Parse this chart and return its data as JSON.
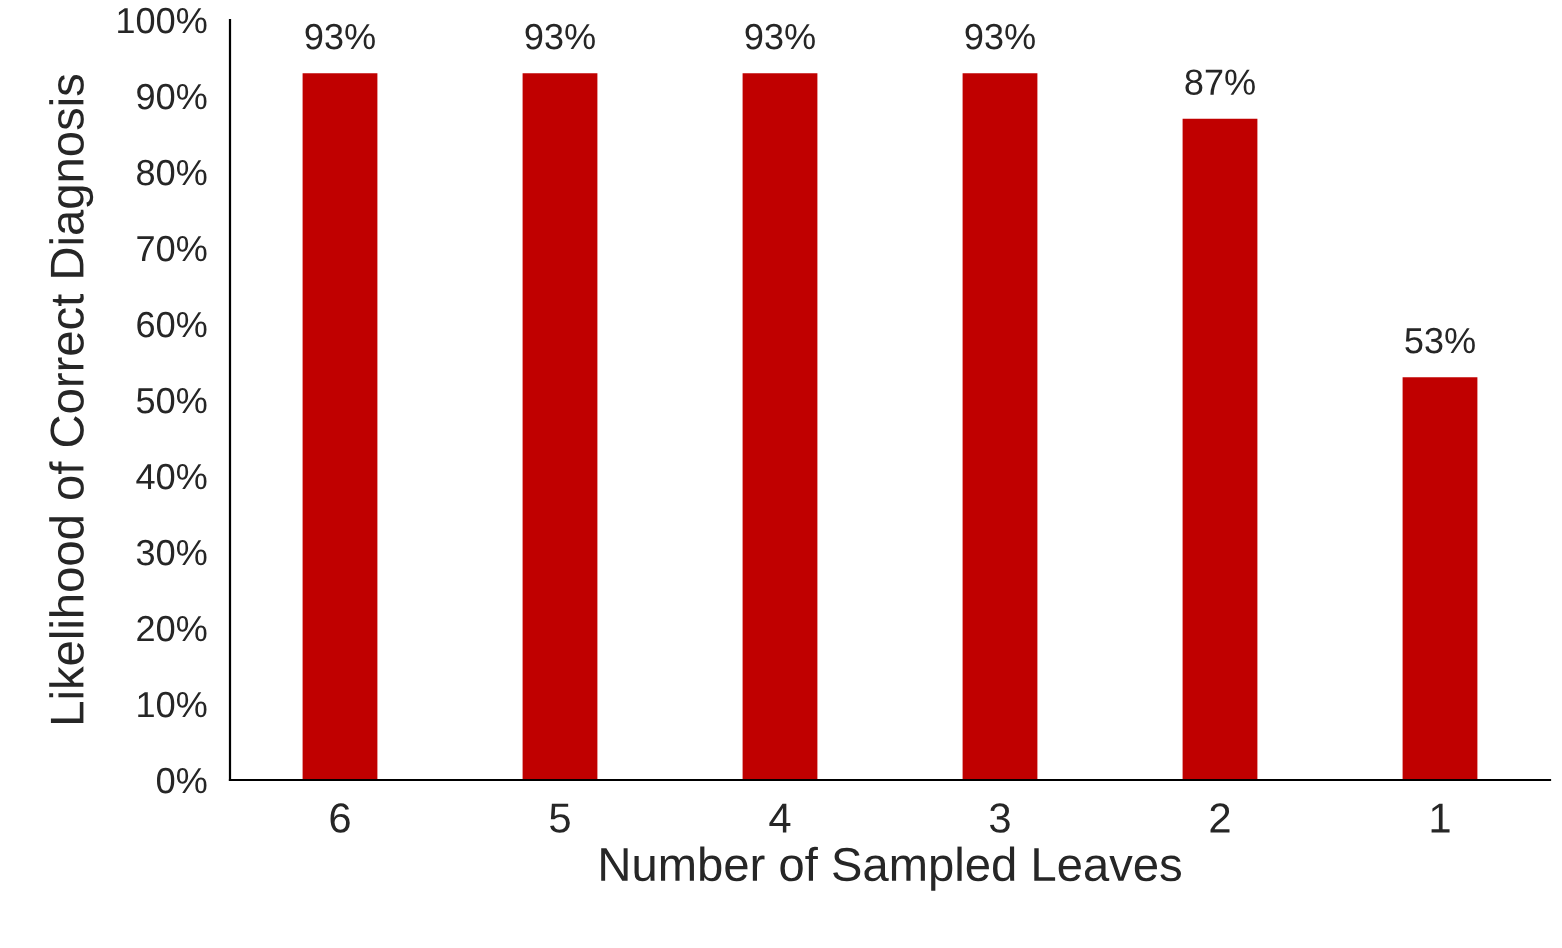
{
  "chart_data": {
    "type": "bar",
    "xlabel": "Number of Sampled Leaves",
    "ylabel": "Likelihood of Correct Diagnosis",
    "categories": [
      "6",
      "5",
      "4",
      "3",
      "2",
      "1"
    ],
    "values": [
      93,
      93,
      93,
      93,
      87,
      53
    ],
    "value_labels": [
      "93%",
      "93%",
      "93%",
      "93%",
      "87%",
      "53%"
    ],
    "color": "#c00000",
    "ylim": [
      0,
      100
    ],
    "yticks": [
      {
        "value": 0,
        "label": "0%"
      },
      {
        "value": 10,
        "label": "10%"
      },
      {
        "value": 20,
        "label": "20%"
      },
      {
        "value": 30,
        "label": "30%"
      },
      {
        "value": 40,
        "label": "40%"
      },
      {
        "value": 50,
        "label": "50%"
      },
      {
        "value": 60,
        "label": "60%"
      },
      {
        "value": 70,
        "label": "70%"
      },
      {
        "value": 80,
        "label": "80%"
      },
      {
        "value": 90,
        "label": "90%"
      },
      {
        "value": 100,
        "label": "100%"
      }
    ],
    "grid": false
  }
}
